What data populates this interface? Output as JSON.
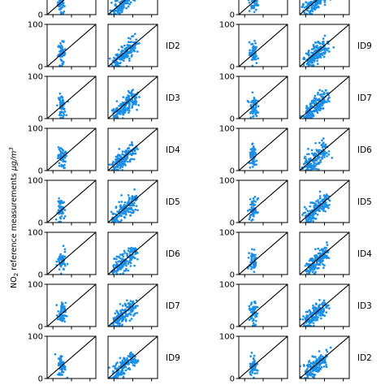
{
  "chart_data": {
    "type": "scatter",
    "ylabel": "NO₂ reference measurements μg/m³",
    "ylabel_parts": {
      "prefix": "NO",
      "sub": "2",
      "main": " reference measurements ",
      "unit": "μg/m",
      "sup": "3"
    },
    "ylim": [
      0,
      100
    ],
    "yticks": [
      "0",
      "100"
    ],
    "point_color": "#1a8fe8",
    "line_color": "#000000",
    "groups": [
      {
        "panels": [
          "narrow",
          "wide"
        ],
        "row_labels": [
          "",
          "ID2",
          "ID3",
          "ID4",
          "ID5",
          "ID6",
          "ID7",
          "ID9"
        ]
      },
      {
        "panels": [
          "narrow",
          "wide"
        ],
        "row_labels": [
          "",
          "ID9",
          "ID7",
          "ID6",
          "ID5",
          "ID4",
          "ID3",
          "ID2"
        ]
      }
    ],
    "cluster_center_estimates": {
      "narrow": {
        "x_frac": 0.3,
        "y": 30
      },
      "wide": {
        "x_frac": 0.25,
        "y": 30
      }
    }
  }
}
